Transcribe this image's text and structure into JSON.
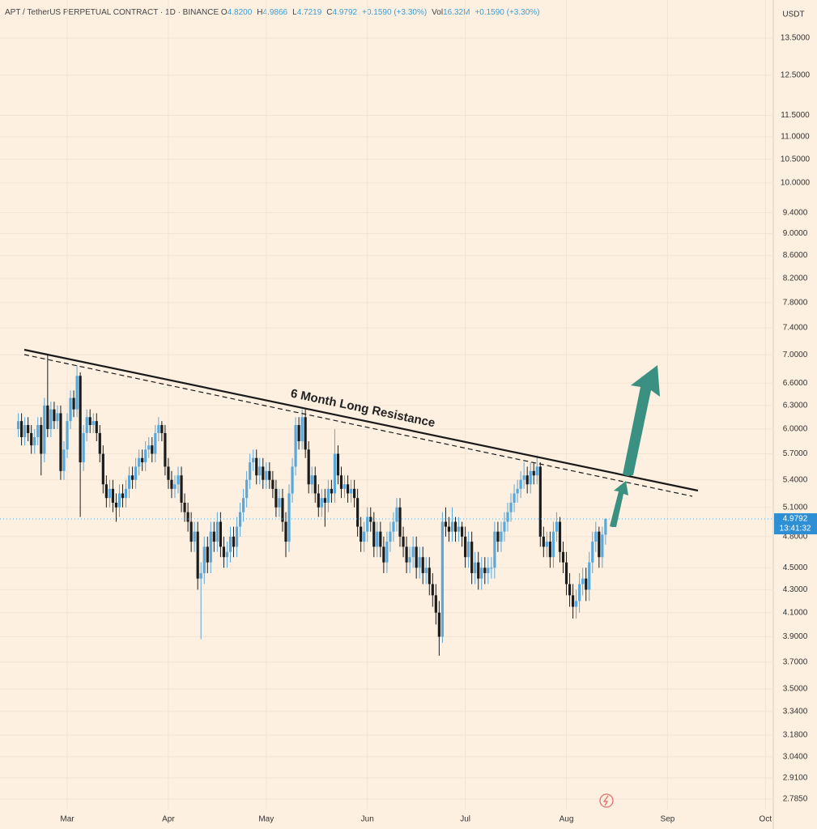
{
  "chart_data": {
    "type": "candlestick",
    "title": "APT / TetherUS PERPETUAL CONTRACT · 1D · BINANCE",
    "header_items": [
      {
        "key": "O",
        "value": "4.8200"
      },
      {
        "key": "H",
        "value": "4.9866"
      },
      {
        "key": "L",
        "value": "4.7219"
      },
      {
        "key": "C",
        "value": "4.9792"
      },
      {
        "key": "",
        "value": "+0.1590 (+3.30%)"
      },
      {
        "key": "Vol",
        "value": "16.32M"
      },
      {
        "key": "",
        "value": "+0.1590 (+3.30%)"
      }
    ],
    "y_unit": "USDT",
    "annotation": "6 Month Long Resistance",
    "last_price_label": "4.9792",
    "countdown": "13:41:32",
    "log_scale": true,
    "up_color": "#58a8dd",
    "down_color": "#1c1c1c",
    "ylim": [
      2.725,
      14.61
    ],
    "xlim": [
      -20.6,
      216.4
    ],
    "yticks": [
      {
        "value": 13.5,
        "label": "13.5000"
      },
      {
        "value": 12.5,
        "label": "12.5000"
      },
      {
        "value": 11.5,
        "label": "11.5000"
      },
      {
        "value": 11,
        "label": "11.0000"
      },
      {
        "value": 10.5,
        "label": "10.5000"
      },
      {
        "value": 10,
        "label": "10.0000"
      },
      {
        "value": 9.4,
        "label": "9.4000"
      },
      {
        "value": 9,
        "label": "9.0000"
      },
      {
        "value": 8.6,
        "label": "8.6000"
      },
      {
        "value": 8.2,
        "label": "8.2000"
      },
      {
        "value": 7.8,
        "label": "7.8000"
      },
      {
        "value": 7.4,
        "label": "7.4000"
      },
      {
        "value": 7,
        "label": "7.0000"
      },
      {
        "value": 6.6,
        "label": "6.6000"
      },
      {
        "value": 6.3,
        "label": "6.3000"
      },
      {
        "value": 6,
        "label": "6.0000"
      },
      {
        "value": 5.7,
        "label": "5.7000"
      },
      {
        "value": 5.4,
        "label": "5.4000"
      },
      {
        "value": 5.1,
        "label": "5.1000"
      },
      {
        "value": 4.8,
        "label": "4.8000"
      },
      {
        "value": 4.5,
        "label": "4.5000"
      },
      {
        "value": 4.3,
        "label": "4.3000"
      },
      {
        "value": 4.1,
        "label": "4.1000"
      },
      {
        "value": 3.9,
        "label": "3.9000"
      },
      {
        "value": 3.7,
        "label": "3.7000"
      },
      {
        "value": 3.5,
        "label": "3.5000"
      },
      {
        "value": 3.34,
        "label": "3.3400"
      },
      {
        "value": 3.18,
        "label": "3.1800"
      },
      {
        "value": 3.04,
        "label": "3.0400"
      },
      {
        "value": 2.91,
        "label": "2.9100"
      },
      {
        "value": 2.785,
        "label": "2.7850"
      }
    ],
    "xticks": [
      {
        "value": 0,
        "label": "Mar"
      },
      {
        "value": 31,
        "label": "Apr"
      },
      {
        "value": 61,
        "label": "May"
      },
      {
        "value": 92,
        "label": "Jun"
      },
      {
        "value": 122,
        "label": "Jul"
      },
      {
        "value": 153,
        "label": "Aug"
      },
      {
        "value": 184,
        "label": "Sep"
      },
      {
        "value": 214,
        "label": "Oct"
      }
    ],
    "x": [
      -15,
      -14,
      -13,
      -12,
      -11,
      -10,
      -9,
      -8,
      -7,
      -6,
      -5,
      -4,
      -3,
      -2,
      -1,
      0,
      1,
      2,
      3,
      4,
      5,
      6,
      7,
      8,
      9,
      10,
      11,
      12,
      13,
      14,
      15,
      16,
      17,
      18,
      19,
      20,
      21,
      22,
      23,
      24,
      25,
      26,
      27,
      28,
      29,
      30,
      31,
      32,
      33,
      34,
      35,
      36,
      37,
      38,
      39,
      40,
      41,
      42,
      43,
      44,
      45,
      46,
      47,
      48,
      49,
      50,
      51,
      52,
      53,
      54,
      55,
      56,
      57,
      58,
      59,
      60,
      61,
      62,
      63,
      64,
      65,
      66,
      67,
      68,
      69,
      70,
      71,
      72,
      73,
      74,
      75,
      76,
      77,
      78,
      79,
      80,
      81,
      82,
      83,
      84,
      85,
      86,
      87,
      88,
      89,
      90,
      91,
      92,
      93,
      94,
      95,
      96,
      97,
      98,
      99,
      100,
      101,
      102,
      103,
      104,
      105,
      106,
      107,
      108,
      109,
      110,
      111,
      112,
      113,
      114,
      115,
      116,
      117,
      118,
      119,
      120,
      121,
      122,
      123,
      124,
      125,
      126,
      127,
      128,
      129,
      130,
      131,
      132,
      133,
      134,
      135,
      136,
      137,
      138,
      139,
      140,
      141,
      142,
      143,
      144,
      145,
      146,
      147,
      148,
      149,
      150,
      151,
      152,
      153,
      154,
      155,
      156,
      157,
      158,
      159,
      160,
      161,
      162,
      163,
      164,
      165
    ],
    "open": [
      6.0,
      6.1,
      5.9,
      6.05,
      5.95,
      5.8,
      5.9,
      6.05,
      5.7,
      6.3,
      6.0,
      6.25,
      6.1,
      6.2,
      5.5,
      5.75,
      6.1,
      6.4,
      6.25,
      6.7,
      5.6,
      5.95,
      6.15,
      6.05,
      6.1,
      5.95,
      5.7,
      5.35,
      5.2,
      5.3,
      5.15,
      5.1,
      5.25,
      5.2,
      5.3,
      5.45,
      5.4,
      5.55,
      5.65,
      5.6,
      5.75,
      5.8,
      5.7,
      5.95,
      6.05,
      5.95,
      5.55,
      5.4,
      5.3,
      5.35,
      5.45,
      5.15,
      5.05,
      4.95,
      4.75,
      4.85,
      4.4,
      4.45,
      4.7,
      4.55,
      4.85,
      4.75,
      4.95,
      4.7,
      4.6,
      4.65,
      4.8,
      4.7,
      4.9,
      5.05,
      5.2,
      5.4,
      5.6,
      5.65,
      5.45,
      5.55,
      5.4,
      5.5,
      5.4,
      5.3,
      5.1,
      5.2,
      4.95,
      4.75,
      5.25,
      5.55,
      6.05,
      5.85,
      6.15,
      5.75,
      5.35,
      5.45,
      5.25,
      5.1,
      5.2,
      5.15,
      5.3,
      5.25,
      5.7,
      5.45,
      5.3,
      5.35,
      5.25,
      5.3,
      5.2,
      4.9,
      4.75,
      4.85,
      5.0,
      4.95,
      4.7,
      4.85,
      4.7,
      4.55,
      4.75,
      4.85,
      4.95,
      5.1,
      4.8,
      4.7,
      4.55,
      4.6,
      4.7,
      4.5,
      4.6,
      4.45,
      4.5,
      4.35,
      4.25,
      4.1,
      3.9,
      4.95,
      4.9,
      4.85,
      4.95,
      4.85,
      4.9,
      4.8,
      4.6,
      4.75,
      4.45,
      4.55,
      4.4,
      4.5,
      4.45,
      4.5,
      4.5,
      4.85,
      4.75,
      4.85,
      4.95,
      5.05,
      5.15,
      5.25,
      5.3,
      5.4,
      5.45,
      5.35,
      5.5,
      5.45,
      5.55,
      4.8,
      4.7,
      4.75,
      4.6,
      4.85,
      4.95,
      4.65,
      4.55,
      4.35,
      4.25,
      4.15,
      4.2,
      4.35,
      4.4,
      4.3,
      4.55,
      4.75,
      4.85,
      4.6,
      4.82
    ],
    "high": [
      6.2,
      6.2,
      6.15,
      6.15,
      6.05,
      6.0,
      6.15,
      6.15,
      6.4,
      7.0,
      6.35,
      6.35,
      6.3,
      6.3,
      5.85,
      6.2,
      6.5,
      6.5,
      6.85,
      6.75,
      6.05,
      6.25,
      6.25,
      6.2,
      6.2,
      6.05,
      5.8,
      5.45,
      5.4,
      5.4,
      5.25,
      5.35,
      5.35,
      5.4,
      5.55,
      5.55,
      5.65,
      5.75,
      5.75,
      5.85,
      5.9,
      5.9,
      6.05,
      6.15,
      6.1,
      6.05,
      5.65,
      5.5,
      5.45,
      5.55,
      5.55,
      5.25,
      5.15,
      5.05,
      4.95,
      4.95,
      4.55,
      4.8,
      4.8,
      4.95,
      4.95,
      5.05,
      5.05,
      4.8,
      4.75,
      4.9,
      4.9,
      5.0,
      5.15,
      5.3,
      5.5,
      5.7,
      5.75,
      5.75,
      5.65,
      5.65,
      5.6,
      5.6,
      5.5,
      5.4,
      5.3,
      5.3,
      5.05,
      5.35,
      5.65,
      6.15,
      6.15,
      6.25,
      6.25,
      5.85,
      5.55,
      5.55,
      5.35,
      5.3,
      5.3,
      5.4,
      5.4,
      6.0,
      5.8,
      5.55,
      5.45,
      5.45,
      5.4,
      5.4,
      5.3,
      5.0,
      4.95,
      5.1,
      5.1,
      5.05,
      4.95,
      4.95,
      4.8,
      4.85,
      4.95,
      5.05,
      5.2,
      5.2,
      4.9,
      4.8,
      4.7,
      4.8,
      4.8,
      4.7,
      4.7,
      4.6,
      4.6,
      4.45,
      4.35,
      4.2,
      5.05,
      5.1,
      5.0,
      5.1,
      5.0,
      5.0,
      4.95,
      4.9,
      4.85,
      4.85,
      4.65,
      4.65,
      4.6,
      4.6,
      4.6,
      4.6,
      4.95,
      4.95,
      4.95,
      5.05,
      5.15,
      5.25,
      5.35,
      5.4,
      5.5,
      5.6,
      5.55,
      5.6,
      5.6,
      5.68,
      5.6,
      4.9,
      4.85,
      4.85,
      4.95,
      5.05,
      5.0,
      4.75,
      4.65,
      4.45,
      4.35,
      4.3,
      4.45,
      4.5,
      4.5,
      4.65,
      4.85,
      4.95,
      4.9,
      4.9,
      4.9866
    ],
    "low": [
      5.9,
      5.8,
      5.8,
      5.85,
      5.7,
      5.7,
      5.8,
      5.45,
      5.6,
      5.9,
      5.9,
      6.0,
      6.0,
      5.4,
      5.4,
      5.65,
      6.0,
      6.15,
      6.15,
      5.0,
      5.5,
      5.85,
      5.95,
      5.95,
      5.85,
      5.6,
      5.25,
      5.1,
      5.1,
      5.05,
      4.95,
      5.0,
      5.1,
      5.1,
      5.2,
      5.3,
      5.3,
      5.45,
      5.5,
      5.5,
      5.65,
      5.6,
      5.6,
      5.85,
      5.85,
      5.45,
      5.3,
      5.2,
      5.2,
      5.25,
      5.05,
      4.95,
      4.85,
      4.65,
      4.65,
      4.3,
      3.88,
      4.35,
      4.45,
      4.45,
      4.65,
      4.65,
      4.6,
      4.5,
      4.5,
      4.55,
      4.6,
      4.6,
      4.8,
      4.95,
      5.1,
      5.3,
      5.5,
      5.35,
      5.35,
      5.3,
      5.3,
      5.3,
      5.2,
      5.0,
      5.0,
      4.85,
      4.6,
      4.65,
      5.15,
      5.45,
      5.75,
      5.75,
      5.65,
      5.25,
      5.25,
      5.15,
      5.0,
      5.0,
      4.9,
      5.05,
      5.15,
      5.15,
      5.35,
      5.2,
      5.2,
      5.15,
      5.15,
      5.1,
      4.8,
      4.65,
      4.65,
      4.75,
      4.85,
      4.6,
      4.6,
      4.6,
      4.45,
      4.45,
      4.65,
      4.75,
      4.85,
      4.7,
      4.6,
      4.45,
      4.45,
      4.5,
      4.4,
      4.4,
      4.35,
      4.35,
      4.25,
      4.15,
      4.0,
      3.75,
      3.85,
      4.8,
      4.75,
      4.75,
      4.75,
      4.75,
      4.7,
      4.5,
      4.5,
      4.35,
      4.35,
      4.3,
      4.3,
      4.35,
      4.35,
      4.4,
      4.4,
      4.65,
      4.65,
      4.75,
      4.85,
      4.95,
      5.05,
      5.15,
      5.2,
      5.3,
      5.25,
      5.25,
      5.35,
      5.35,
      4.7,
      4.6,
      4.6,
      4.5,
      4.5,
      4.75,
      4.55,
      4.45,
      4.25,
      4.15,
      4.05,
      4.05,
      4.1,
      4.25,
      4.2,
      4.2,
      4.45,
      4.65,
      4.5,
      4.5,
      4.7219
    ],
    "close": [
      6.1,
      5.9,
      6.05,
      5.95,
      5.8,
      5.9,
      6.05,
      5.7,
      6.3,
      6.0,
      6.25,
      6.1,
      6.2,
      5.5,
      5.75,
      6.1,
      6.4,
      6.25,
      6.7,
      5.6,
      5.95,
      6.15,
      6.05,
      6.1,
      5.95,
      5.7,
      5.35,
      5.2,
      5.3,
      5.15,
      5.1,
      5.25,
      5.2,
      5.3,
      5.45,
      5.4,
      5.55,
      5.65,
      5.6,
      5.75,
      5.8,
      5.7,
      5.95,
      6.05,
      5.95,
      5.55,
      5.4,
      5.3,
      5.35,
      5.45,
      5.15,
      5.05,
      4.95,
      4.75,
      4.85,
      4.4,
      4.45,
      4.7,
      4.55,
      4.85,
      4.75,
      4.95,
      4.7,
      4.6,
      4.65,
      4.8,
      4.7,
      4.9,
      5.05,
      5.2,
      5.4,
      5.6,
      5.65,
      5.45,
      5.55,
      5.4,
      5.5,
      5.4,
      5.3,
      5.1,
      5.2,
      4.95,
      4.75,
      5.25,
      5.55,
      6.05,
      5.85,
      6.15,
      5.75,
      5.35,
      5.45,
      5.25,
      5.1,
      5.2,
      5.15,
      5.3,
      5.25,
      5.7,
      5.45,
      5.3,
      5.35,
      5.25,
      5.3,
      5.2,
      4.9,
      4.75,
      4.85,
      5.0,
      4.95,
      4.7,
      4.85,
      4.7,
      4.55,
      4.75,
      4.85,
      4.95,
      5.1,
      4.8,
      4.7,
      4.55,
      4.6,
      4.7,
      4.5,
      4.6,
      4.45,
      4.5,
      4.35,
      4.25,
      4.1,
      3.9,
      4.95,
      4.9,
      4.85,
      4.95,
      4.85,
      4.9,
      4.8,
      4.6,
      4.75,
      4.45,
      4.55,
      4.4,
      4.5,
      4.45,
      4.5,
      4.5,
      4.85,
      4.75,
      4.85,
      4.95,
      5.05,
      5.15,
      5.25,
      5.3,
      5.4,
      5.45,
      5.35,
      5.5,
      5.45,
      5.55,
      4.8,
      4.7,
      4.75,
      4.6,
      4.85,
      4.95,
      4.65,
      4.55,
      4.35,
      4.25,
      4.15,
      4.2,
      4.35,
      4.4,
      4.3,
      4.55,
      4.75,
      4.85,
      4.6,
      4.82,
      4.9792
    ]
  }
}
